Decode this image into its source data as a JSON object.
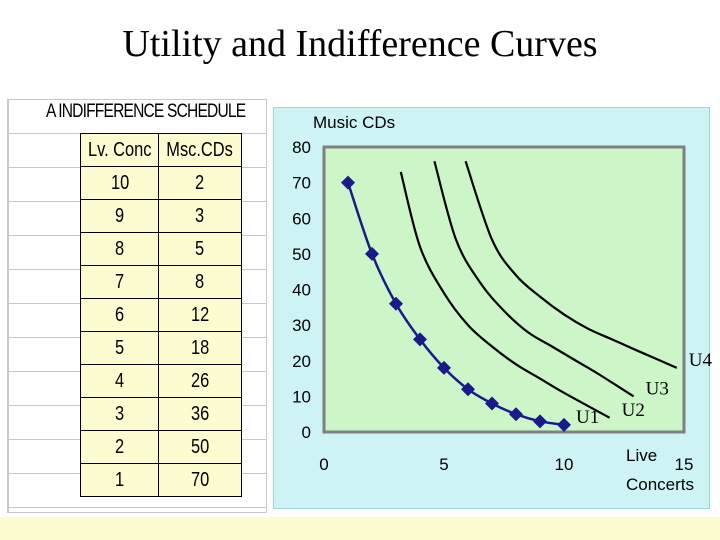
{
  "title": "Utility and Indifference Curves",
  "schedule": {
    "title": "A INDIFFERENCE SCHEDULE",
    "headers": [
      "Lv. Conc",
      "Msc.CDs"
    ],
    "rows": [
      [
        "10",
        "2"
      ],
      [
        "9",
        "3"
      ],
      [
        "8",
        "5"
      ],
      [
        "7",
        "8"
      ],
      [
        "6",
        "12"
      ],
      [
        "5",
        "18"
      ],
      [
        "4",
        "26"
      ],
      [
        "3",
        "36"
      ],
      [
        "2",
        "50"
      ],
      [
        "1",
        "70"
      ]
    ]
  },
  "colors": {
    "plot_background": "#ccf5c8",
    "panel_background": "#cdf3f5",
    "series_color": "#1a1a8c",
    "table_fill": "#fdfbd0"
  },
  "chart_data": {
    "type": "line",
    "title": "",
    "ylabel": "Music CDs",
    "xlabel": "Live Concerts",
    "xlabel_lines": [
      "Live",
      "Concerts"
    ],
    "xlim": [
      0,
      15
    ],
    "ylim": [
      0,
      80
    ],
    "xticks": [
      "0",
      "5",
      "10",
      "15"
    ],
    "yticks": [
      "0",
      "10",
      "20",
      "30",
      "40",
      "50",
      "60",
      "70",
      "80"
    ],
    "grid": false,
    "marker": "diamond",
    "series": [
      {
        "name": "U1",
        "x": [
          1,
          2,
          3,
          4,
          5,
          6,
          7,
          8,
          9,
          10
        ],
        "y": [
          70,
          50,
          36,
          26,
          18,
          12,
          8,
          5,
          3,
          2
        ],
        "markers": true
      },
      {
        "name": "U2",
        "x": [
          3.2,
          4,
          5,
          6,
          7,
          8,
          9,
          10,
          11.9
        ],
        "y": [
          73,
          52,
          39,
          30,
          24,
          19,
          15,
          11,
          4
        ],
        "markers": false
      },
      {
        "name": "U3",
        "x": [
          4.6,
          5.5,
          6.5,
          7.5,
          8.5,
          9.5,
          10.5,
          11.5,
          12.9
        ],
        "y": [
          76,
          54,
          42,
          34,
          28,
          24,
          20,
          16,
          10
        ],
        "markers": false
      },
      {
        "name": "U4",
        "x": [
          5.9,
          7,
          8,
          9,
          10,
          11,
          12,
          13,
          14.7
        ],
        "y": [
          76,
          54,
          44,
          38,
          33,
          29,
          26,
          23,
          18
        ],
        "markers": false
      }
    ]
  }
}
